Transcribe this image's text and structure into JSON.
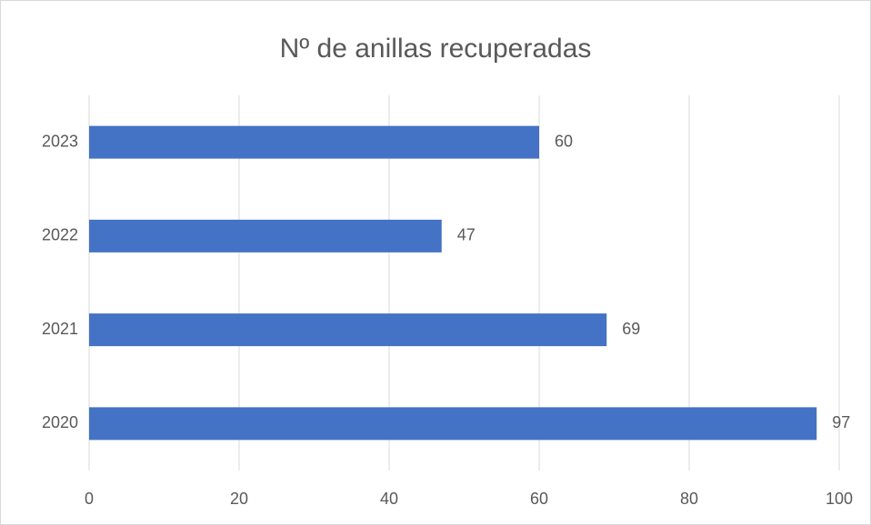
{
  "chart_data": {
    "type": "barh",
    "title": "Nº de anillas recuperadas",
    "categories": [
      "2020",
      "2021",
      "2022",
      "2023"
    ],
    "values": [
      97,
      69,
      47,
      60
    ],
    "color": "#4472c4",
    "xlim": [
      0,
      100
    ],
    "xticks": [
      0,
      20,
      40,
      60,
      80,
      100
    ],
    "grid": true
  }
}
